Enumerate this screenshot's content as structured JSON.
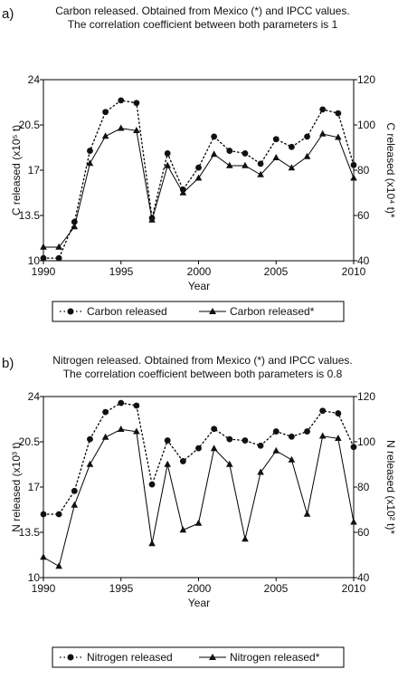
{
  "chart_data": [
    {
      "panel_label": "a)",
      "type": "line",
      "title_line1": "Carbon released. Obtained from Mexico (*) and IPCC values.",
      "title_line2": "The correlation coefficient between both parameters is 1",
      "xlabel": "Year",
      "ylabel": "C released (x10⁵ t)",
      "ylabel2": "C released (x10⁴ t)*",
      "xlim": [
        1990,
        2010
      ],
      "ylim": [
        10,
        24
      ],
      "y2lim": [
        40,
        120
      ],
      "xticks": [
        "1990",
        "1995",
        "2000",
        "2005",
        "2010"
      ],
      "yticks": [
        "10",
        "13.5",
        "17",
        "20.5",
        "24"
      ],
      "y2ticks": [
        "40",
        "60",
        "80",
        "100",
        "120"
      ],
      "x": [
        1990,
        1991,
        1992,
        1993,
        1994,
        1995,
        1996,
        1997,
        1998,
        1999,
        2000,
        2001,
        2002,
        2003,
        2004,
        2005,
        2006,
        2007,
        2008,
        2009,
        2010
      ],
      "series": [
        {
          "name": "Carbon released",
          "axis": "left",
          "style": "dotted",
          "marker": "circle",
          "values": [
            10.2,
            10.2,
            13.0,
            18.5,
            21.5,
            22.4,
            22.2,
            13.3,
            18.3,
            15.5,
            17.2,
            19.6,
            18.5,
            18.3,
            17.5,
            19.4,
            18.8,
            19.6,
            21.7,
            21.4,
            17.4
          ]
        },
        {
          "name": "Carbon released*",
          "axis": "right",
          "style": "solid",
          "marker": "triangle",
          "values": [
            46.0,
            46.0,
            55.0,
            83.0,
            95.0,
            98.5,
            97.5,
            58.0,
            82.0,
            70.0,
            76.5,
            87.0,
            82.0,
            82.0,
            78.0,
            85.5,
            81.0,
            86.0,
            96.0,
            94.5,
            76.5
          ]
        }
      ],
      "legend": {
        "position": "bottom",
        "items": [
          "Carbon released",
          "Carbon released*"
        ]
      }
    },
    {
      "panel_label": "b)",
      "type": "line",
      "title_line1": "Nitrogen released. Obtained from Mexico (*) and IPCC values.",
      "title_line2": "The correlation coefficient between both parameters is 0.8",
      "xlabel": "Year",
      "ylabel": "N released (x10³ t)",
      "ylabel2": "N released (x10² t)*",
      "xlim": [
        1990,
        2010
      ],
      "ylim": [
        10,
        24
      ],
      "y2lim": [
        40,
        120
      ],
      "xticks": [
        "1990",
        "1995",
        "2000",
        "2005",
        "2010"
      ],
      "yticks": [
        "10",
        "13.5",
        "17",
        "20.5",
        "24"
      ],
      "y2ticks": [
        "40",
        "60",
        "80",
        "100",
        "120"
      ],
      "x": [
        1990,
        1991,
        1992,
        1993,
        1994,
        1995,
        1996,
        1997,
        1998,
        1999,
        2000,
        2001,
        2002,
        2003,
        2004,
        2005,
        2006,
        2007,
        2008,
        2009,
        2010
      ],
      "series": [
        {
          "name": "Nitrogen released",
          "axis": "left",
          "style": "dotted",
          "marker": "circle",
          "values": [
            14.9,
            14.9,
            16.7,
            20.7,
            22.8,
            23.5,
            23.3,
            17.2,
            20.6,
            19.0,
            20.0,
            21.5,
            20.7,
            20.6,
            20.2,
            21.3,
            20.9,
            21.3,
            22.9,
            22.7,
            20.1
          ]
        },
        {
          "name": "Nitrogen released*",
          "axis": "right",
          "style": "solid",
          "marker": "triangle",
          "values": [
            49.0,
            45.0,
            72.0,
            90.0,
            102.0,
            105.5,
            104.5,
            55.0,
            90.0,
            61.0,
            64.0,
            97.0,
            90.0,
            57.0,
            86.5,
            96.0,
            92.0,
            68.0,
            102.5,
            101.5,
            64.5
          ]
        }
      ],
      "legend": {
        "position": "bottom",
        "items": [
          "Nitrogen released",
          "Nitrogen released*"
        ]
      }
    }
  ]
}
